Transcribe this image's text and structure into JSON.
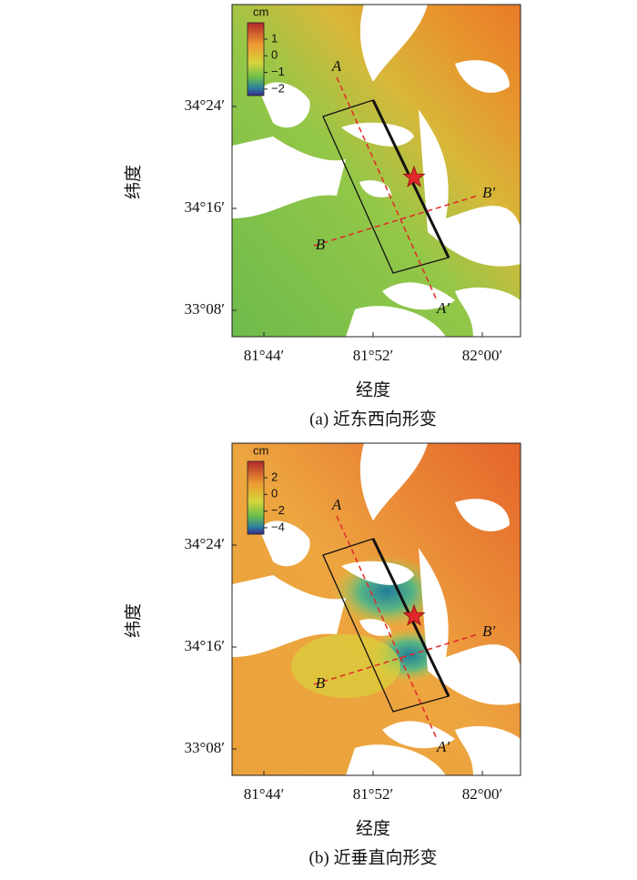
{
  "panels": [
    {
      "caption": "(a) 近东西向形变",
      "y_label": "纬度",
      "x_label": "经度",
      "y_tick_labels": [
        "34°24′",
        "34°16′",
        "33°08′"
      ],
      "x_tick_labels": [
        "81°44′",
        "81°52′",
        "82°00′"
      ],
      "colorbar": {
        "unit": "cm",
        "tick_labels": [
          "1",
          "0",
          "−1",
          "−2"
        ]
      },
      "profile_labels": [
        "A",
        "A′",
        "B",
        "B′"
      ]
    },
    {
      "caption": "(b) 近垂直向形变",
      "y_label": "纬度",
      "x_label": "经度",
      "y_tick_labels": [
        "34°24′",
        "34°16′",
        "33°08′"
      ],
      "x_tick_labels": [
        "81°44′",
        "81°52′",
        "82°00′"
      ],
      "colorbar": {
        "unit": "cm",
        "tick_labels": [
          "2",
          "0",
          "−2",
          "−4"
        ]
      },
      "profile_labels": [
        "A",
        "A′",
        "B",
        "B′"
      ]
    }
  ]
}
